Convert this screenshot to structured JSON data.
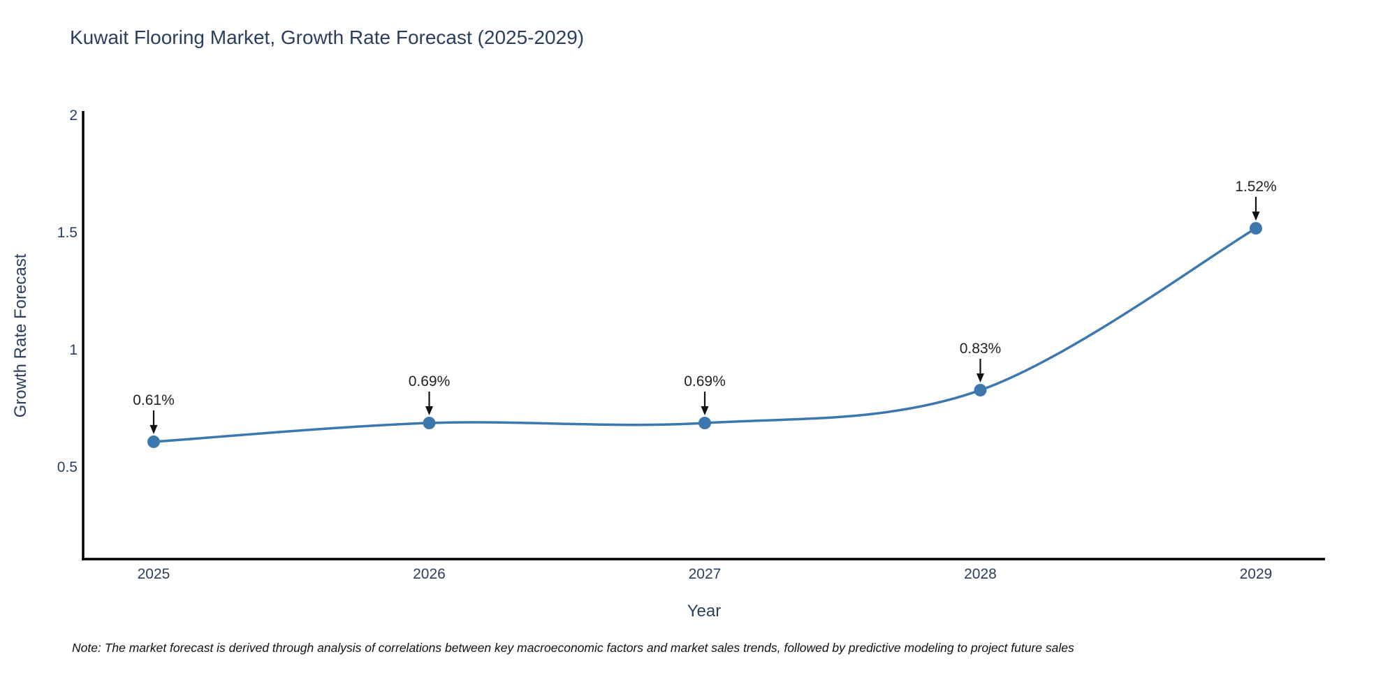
{
  "figure": {
    "title": "Kuwait Flooring Market, Growth Rate Forecast (2025-2029)",
    "note": "Note: The market forecast is derived through analysis of correlations between key macroeconomic factors and market sales trends, followed by predictive modeling to project future sales"
  },
  "chart_data": {
    "type": "line",
    "title": "Kuwait Flooring Market, Growth Rate Forecast (2025-2029)",
    "xlabel": "Year",
    "ylabel": "Growth Rate Forecast",
    "x": [
      2025,
      2026,
      2027,
      2028,
      2029
    ],
    "values": [
      0.61,
      0.69,
      0.69,
      0.83,
      1.52
    ],
    "point_labels": [
      "0.61%",
      "0.69%",
      "0.69%",
      "0.83%",
      "1.52%"
    ],
    "xtick_labels": [
      "2025",
      "2026",
      "2027",
      "2028",
      "2029"
    ],
    "ytick_values": [
      0.5,
      1,
      1.5,
      2
    ],
    "ytick_labels": [
      "0.5",
      "1",
      "1.5",
      "2"
    ],
    "xlim": [
      2024.744,
      2029.251
    ],
    "ylim": [
      0.11,
      2.02
    ],
    "grid": false,
    "legend": "none",
    "line_shape": "spline",
    "marker": "circle",
    "colors": {
      "line": "#3c77ae",
      "marker": "#3c77ae",
      "arrow": "#111111",
      "spine": "#000000",
      "tick_text": "#2a3f5f",
      "annotation_text": "#222222"
    }
  }
}
